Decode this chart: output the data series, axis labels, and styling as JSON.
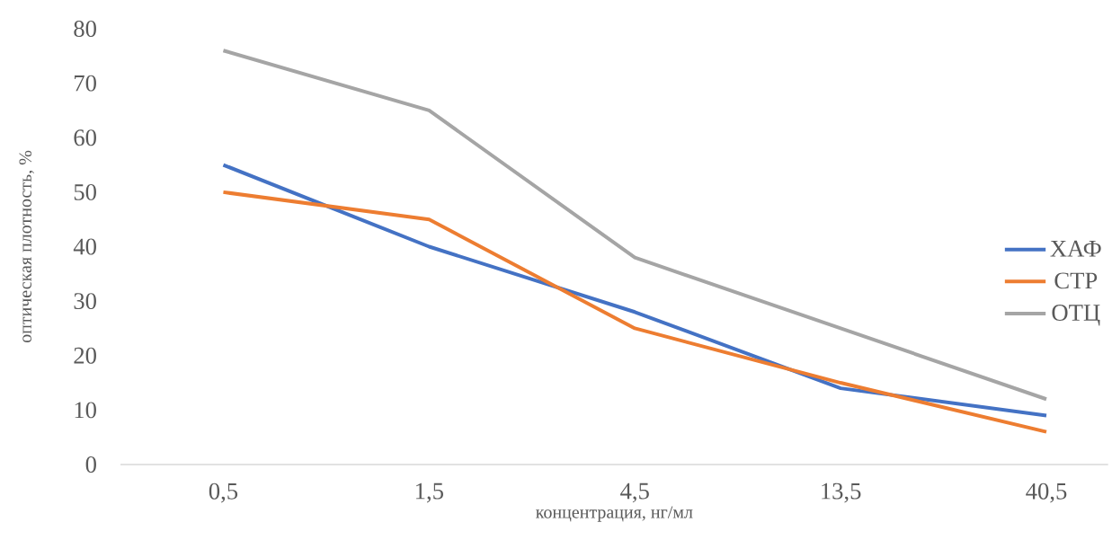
{
  "chart_data": {
    "type": "line",
    "xlabel": "концентрация, нг/мл",
    "ylabel": "оптическая плотность, %",
    "categories": [
      "0,5",
      "1,5",
      "4,5",
      "13,5",
      "40,5"
    ],
    "series": [
      {
        "name": "ХАФ",
        "color": "#4472c4",
        "values": [
          55,
          40,
          28,
          14,
          9
        ]
      },
      {
        "name": "СТР",
        "color": "#ed7d31",
        "values": [
          50,
          45,
          25,
          15,
          6
        ]
      },
      {
        "name": "ОТЦ",
        "color": "#a5a5a5",
        "values": [
          76,
          65,
          38,
          25,
          12
        ]
      }
    ],
    "ylim": [
      0,
      80
    ],
    "yticks": [
      0,
      10,
      20,
      30,
      40,
      50,
      60,
      70,
      80
    ],
    "grid": false,
    "legend": "right",
    "marker": "none",
    "line_style": "solid"
  }
}
